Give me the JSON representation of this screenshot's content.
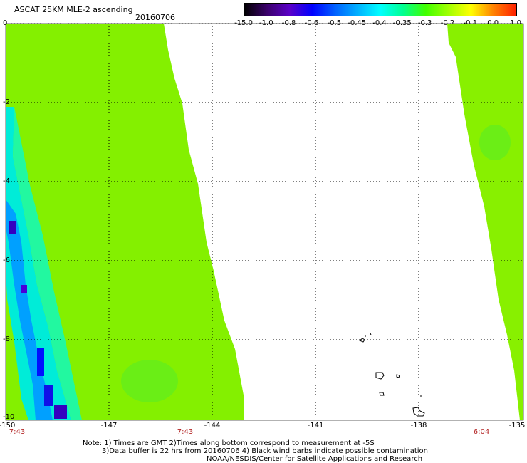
{
  "header": {
    "title": "ASCAT 25KM MLE-2 ascending",
    "date": "20160706"
  },
  "colorbar": {
    "labels": [
      "-15.0",
      "-1.0",
      "-0.8",
      "-0.6",
      "-0.5",
      "-0.45",
      "-0.4",
      "-0.35",
      "-0.3",
      "-0.2",
      "-0.1",
      "0.0",
      "1.0"
    ],
    "colors": [
      "#000000",
      "#3a006a",
      "#5a00c8",
      "#0000ff",
      "#0060ff",
      "#00b0ff",
      "#00ffff",
      "#00ff90",
      "#40ff00",
      "#a0ff00",
      "#ffff00",
      "#ff8000",
      "#ff2000"
    ]
  },
  "map": {
    "x_ticks": [
      "-150",
      "-147",
      "-144",
      "-141",
      "-138",
      "-135"
    ],
    "y_ticks": [
      "0",
      "-2",
      "-4",
      "-6",
      "-8",
      "-10"
    ],
    "time_labels": [
      "7:43",
      "7:43",
      "6:04"
    ],
    "swath_colors": {
      "main": "#84f000",
      "edge_cyan": "#00f2e6",
      "edge_blue": "#0042ff",
      "edge_dark": "#3a00b8"
    }
  },
  "notes": {
    "line1": "Note: 1) Times are GMT 2)Times along bottom correspond to measurement at -5S",
    "line2": "3)Data buffer is 22 hrs from 20160706 4) Black wind barbs indicate possible contamination",
    "line3": "NOAA/NESDIS/Center for Satellite Applications and Research"
  }
}
